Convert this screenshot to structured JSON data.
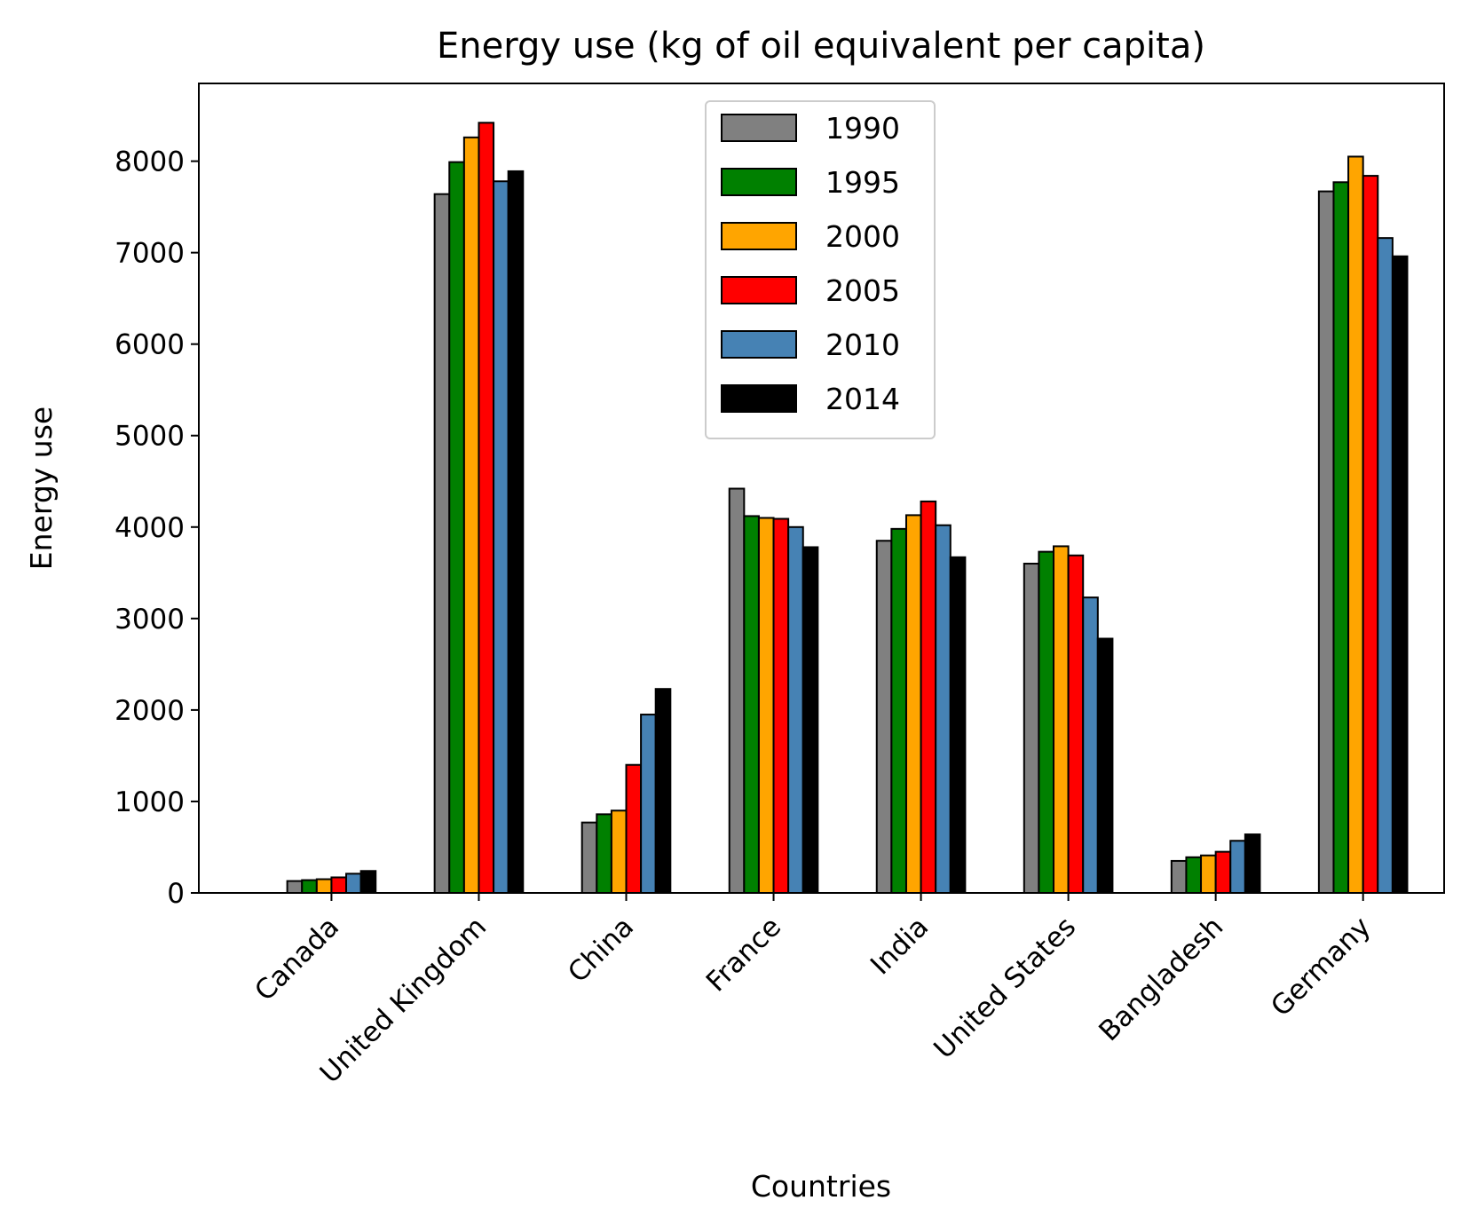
{
  "chart_data": {
    "type": "bar",
    "title": "Energy use (kg of oil equivalent per capita)",
    "xlabel": "Countries",
    "ylabel": "Energy use",
    "ylim": [
      0,
      8850
    ],
    "yticks": [
      0,
      1000,
      2000,
      3000,
      4000,
      5000,
      6000,
      7000,
      8000
    ],
    "grid": false,
    "legend_position": "top-center",
    "categories": [
      "Canada",
      "United Kingdom",
      "China",
      "France",
      "India",
      "United States",
      "Bangladesh",
      "Germany"
    ],
    "series": [
      {
        "name": "1990",
        "color": "#808080",
        "values": [
          130,
          7640,
          770,
          4420,
          3850,
          3600,
          350,
          7670
        ]
      },
      {
        "name": "1995",
        "color": "#008000",
        "values": [
          140,
          7990,
          860,
          4120,
          3980,
          3730,
          390,
          7770
        ]
      },
      {
        "name": "2000",
        "color": "#FFA500",
        "values": [
          150,
          8260,
          900,
          4100,
          4130,
          3790,
          410,
          8050
        ]
      },
      {
        "name": "2005",
        "color": "#FF0000",
        "values": [
          170,
          8420,
          1400,
          4090,
          4280,
          3690,
          450,
          7840
        ]
      },
      {
        "name": "2010",
        "color": "#4682B4",
        "values": [
          210,
          7780,
          1950,
          4000,
          4020,
          3230,
          570,
          7160
        ]
      },
      {
        "name": "2014",
        "color": "#000000",
        "values": [
          240,
          7890,
          2230,
          3780,
          3670,
          2780,
          640,
          6960
        ]
      }
    ]
  }
}
